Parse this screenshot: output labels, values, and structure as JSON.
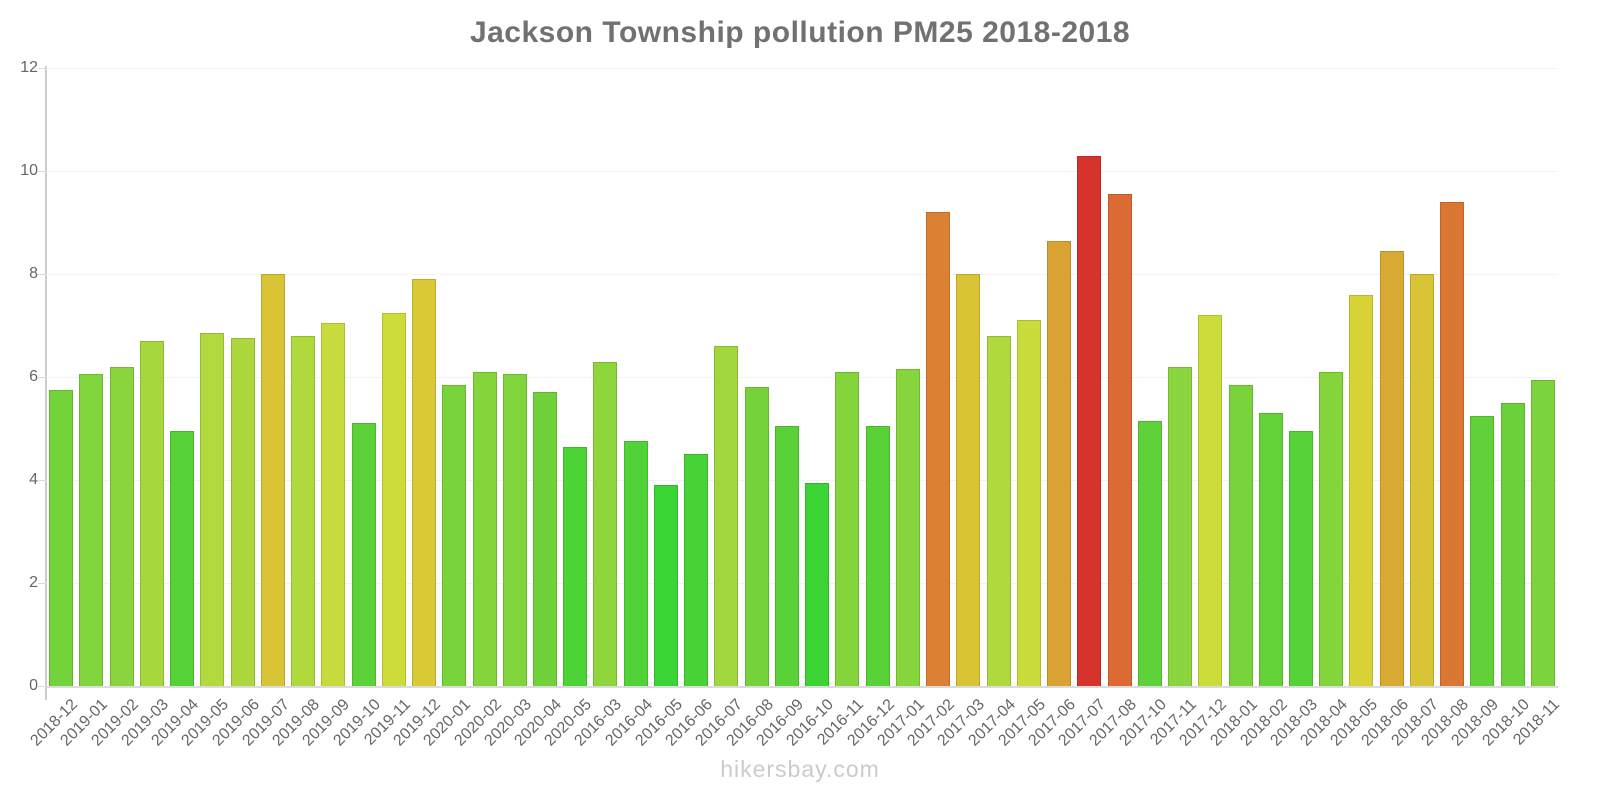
{
  "title": "Jackson Township pollution PM25 2018-2018",
  "watermark": "hikersbay.com",
  "colors": {
    "title_text": "#717171",
    "axis_text": "#666666",
    "axis_line": "#cccccc",
    "gridline": "#f3f3f3",
    "watermark_text": "#cbcbcb"
  },
  "chart_data": {
    "type": "bar",
    "title": "Jackson Township pollution PM25 2018-2018",
    "xlabel": "",
    "ylabel": "",
    "ylim": [
      0,
      12
    ],
    "yticks": [
      0,
      2,
      4,
      6,
      8,
      10,
      12
    ],
    "grid": "horizontal, very faint",
    "legend_position": "none",
    "categories": [
      "2018-12",
      "2019-01",
      "2019-02",
      "2019-03",
      "2019-04",
      "2019-05",
      "2019-06",
      "2019-07",
      "2019-08",
      "2019-09",
      "2019-10",
      "2019-11",
      "2019-12",
      "2020-01",
      "2020-02",
      "2020-03",
      "2020-04",
      "2020-05",
      "2016-03",
      "2016-04",
      "2016-05",
      "2016-06",
      "2016-07",
      "2016-08",
      "2016-09",
      "2016-10",
      "2016-11",
      "2016-12",
      "2017-01",
      "2017-02",
      "2017-03",
      "2017-04",
      "2017-05",
      "2017-06",
      "2017-07",
      "2017-08",
      "2017-10",
      "2017-11",
      "2017-12",
      "2018-01",
      "2018-02",
      "2018-03",
      "2018-04",
      "2018-05",
      "2018-06",
      "2018-07",
      "2018-08",
      "2018-09",
      "2018-10",
      "2018-11"
    ],
    "values": [
      5.75,
      6.05,
      6.2,
      6.7,
      4.95,
      6.85,
      6.75,
      8.0,
      6.8,
      7.05,
      5.1,
      7.25,
      7.9,
      5.85,
      6.1,
      6.05,
      5.7,
      4.65,
      6.3,
      4.75,
      3.9,
      4.5,
      6.6,
      5.8,
      5.05,
      3.95,
      6.1,
      5.05,
      6.15,
      9.2,
      8.0,
      6.8,
      7.1,
      8.65,
      10.3,
      9.55,
      5.15,
      6.2,
      7.2,
      5.85,
      5.3,
      4.95,
      6.1,
      7.6,
      8.45,
      8.0,
      9.4,
      5.25,
      5.5,
      5.95
    ],
    "bar_colors": [
      "#74D23B",
      "#80D43C",
      "#8AD53D",
      "#A6D83D",
      "#55D237",
      "#B2D93D",
      "#ACD83D",
      "#D8C434",
      "#AFD93D",
      "#C7DC3C",
      "#5CD238",
      "#CEDC39",
      "#D9C934",
      "#79D33B",
      "#84D43C",
      "#80D43C",
      "#71D13B",
      "#4CD336",
      "#8FD63D",
      "#4FD337",
      "#3BD435",
      "#47D336",
      "#A1D73D",
      "#76D23B",
      "#59D238",
      "#3CD435",
      "#84D43C",
      "#59D238",
      "#87D53C",
      "#DC8133",
      "#D8C434",
      "#AFD93D",
      "#C9DC3B",
      "#D9A233",
      "#D5332C",
      "#DB6B32",
      "#5ED238",
      "#8AD53D",
      "#CCDC3A",
      "#79D33B",
      "#64D139",
      "#55D237",
      "#84D43C",
      "#D7D336",
      "#D9AA33",
      "#D8C434",
      "#DC7633",
      "#62D139",
      "#6AD13A",
      "#7DD33C"
    ]
  }
}
